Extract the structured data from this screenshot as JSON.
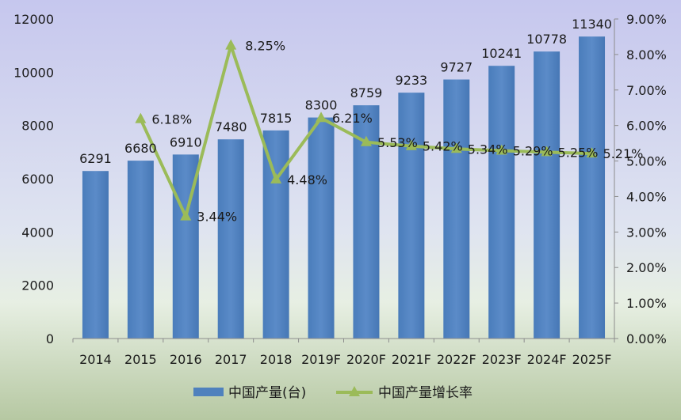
{
  "chart_data": {
    "type": "bar",
    "categories": [
      "2014",
      "2015",
      "2016",
      "2017",
      "2018",
      "2019F",
      "2020F",
      "2021F",
      "2022F",
      "2023F",
      "2024F",
      "2025F"
    ],
    "series": [
      {
        "name": "中国产量(台)",
        "type": "bar",
        "axis": "left",
        "values": [
          6291,
          6680,
          6910,
          7480,
          7815,
          8300,
          8759,
          9233,
          9727,
          10241,
          10778,
          11340
        ],
        "color": "#4f81bd"
      },
      {
        "name": "中国产量增长率",
        "type": "line",
        "axis": "right",
        "values": [
          null,
          6.18,
          3.44,
          8.25,
          4.48,
          6.21,
          5.53,
          5.42,
          5.34,
          5.29,
          5.25,
          5.21
        ],
        "labels": [
          "",
          "6.18%",
          "3.44%",
          "8.25%",
          "4.48%",
          "6.21%",
          "5.53%",
          "5.42%",
          "5.34%",
          "5.29%",
          "5.25%",
          "5.21%"
        ],
        "color": "#9bbb59"
      }
    ],
    "y_left": {
      "min": 0,
      "max": 12000,
      "step": 2000,
      "ticks": [
        "0",
        "2000",
        "4000",
        "6000",
        "8000",
        "10000",
        "12000"
      ]
    },
    "y_right": {
      "min": 0,
      "max": 9,
      "step": 1,
      "ticks": [
        "0.00%",
        "1.00%",
        "2.00%",
        "3.00%",
        "4.00%",
        "5.00%",
        "6.00%",
        "7.00%",
        "8.00%",
        "9.00%"
      ]
    },
    "grid": false,
    "legend_position": "bottom",
    "background": "gradient purple-to-green"
  }
}
